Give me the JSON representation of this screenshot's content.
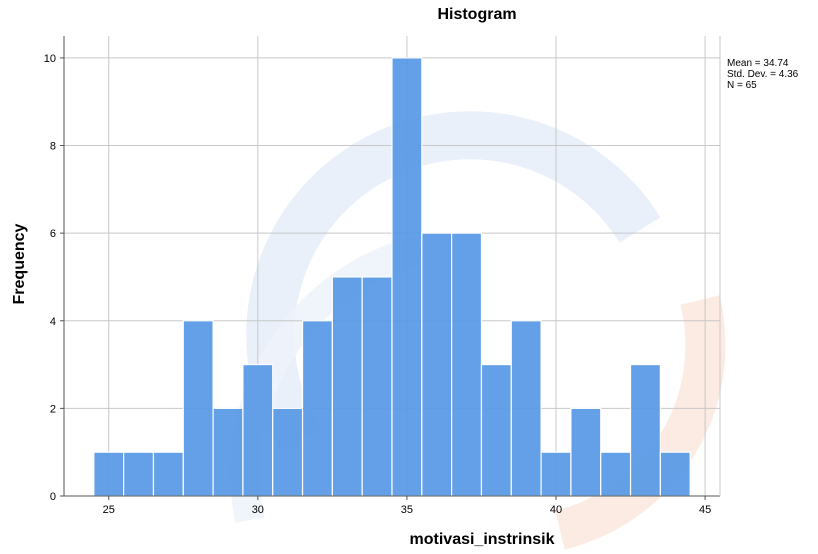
{
  "chart_data": {
    "type": "bar",
    "title": "Histogram",
    "xlabel": "motivasi_instrinsik",
    "ylabel": "Frequency",
    "bins": [
      {
        "x": 25,
        "count": 1
      },
      {
        "x": 26,
        "count": 1
      },
      {
        "x": 27,
        "count": 1
      },
      {
        "x": 28,
        "count": 4
      },
      {
        "x": 29,
        "count": 2
      },
      {
        "x": 30,
        "count": 3
      },
      {
        "x": 31,
        "count": 2
      },
      {
        "x": 32,
        "count": 4
      },
      {
        "x": 33,
        "count": 5
      },
      {
        "x": 34,
        "count": 5
      },
      {
        "x": 35,
        "count": 10
      },
      {
        "x": 36,
        "count": 6
      },
      {
        "x": 37,
        "count": 6
      },
      {
        "x": 38,
        "count": 3
      },
      {
        "x": 39,
        "count": 4
      },
      {
        "x": 40,
        "count": 1
      },
      {
        "x": 41,
        "count": 2
      },
      {
        "x": 42,
        "count": 1
      },
      {
        "x": 43,
        "count": 3
      },
      {
        "x": 44,
        "count": 1
      }
    ],
    "xlim": [
      23.5,
      45.5
    ],
    "ylim": [
      0,
      10.5
    ],
    "xticks": [
      25,
      30,
      35,
      40,
      45
    ],
    "yticks": [
      0,
      2,
      4,
      6,
      8,
      10
    ],
    "grid": true,
    "bar_color": "#5b9be6",
    "stats": {
      "mean": "Mean = 34.74",
      "std": "Std. Dev. = 4.36",
      "n": "N = 65"
    },
    "stats_placement": "top-right"
  }
}
